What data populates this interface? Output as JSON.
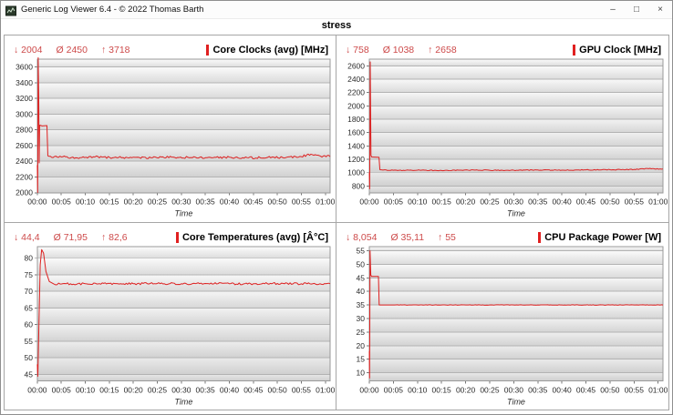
{
  "window": {
    "title": "Generic Log Viewer 6.4 - © 2022 Thomas Barth",
    "controls": {
      "minimize": "–",
      "maximize": "□",
      "close": "×"
    }
  },
  "header": {
    "title": "stress"
  },
  "colors": {
    "line": "#dd2020",
    "stats_text": "#cd4a4a",
    "title_marker": "#e02020",
    "grid_line": "#b3b3b3",
    "plot_border": "#999999",
    "band_top": "#fcfcfc",
    "band_bottom": "#dedede",
    "panel_border": "#a6a6a6"
  },
  "chart_data": [
    {
      "type": "line",
      "title": "Core Clocks (avg) [MHz]",
      "stats": {
        "min": "↓ 2004",
        "avg": "Ø 2450",
        "max": "↑ 3718"
      },
      "xlabel": "Time",
      "xlim": [
        0,
        61
      ],
      "ylim": [
        2000,
        3700
      ],
      "y_ticks": [
        2000,
        2200,
        2400,
        2600,
        2800,
        3000,
        3200,
        3400,
        3600
      ],
      "x_ticks": [
        0,
        5,
        10,
        15,
        20,
        25,
        30,
        35,
        40,
        45,
        50,
        55,
        60
      ],
      "x_tick_labels": [
        "00:00",
        "00:05",
        "00:10",
        "00:15",
        "00:20",
        "00:25",
        "00:30",
        "00:35",
        "00:40",
        "00:45",
        "00:50",
        "00:55",
        "01:00"
      ],
      "series": [
        {
          "name": "Core Clocks (avg)",
          "points": [
            [
              0,
              2350
            ],
            [
              0.08,
              2004
            ],
            [
              0.18,
              3718
            ],
            [
              0.3,
              3200
            ],
            [
              0.4,
              2380
            ],
            [
              0.5,
              2860
            ],
            [
              1.0,
              2850
            ],
            [
              2.0,
              2855
            ],
            [
              2.2,
              2470
            ],
            [
              3,
              2450
            ],
            [
              5,
              2455
            ],
            [
              8,
              2445
            ],
            [
              12,
              2455
            ],
            [
              16,
              2448
            ],
            [
              20,
              2452
            ],
            [
              24,
              2446
            ],
            [
              28,
              2452
            ],
            [
              32,
              2448
            ],
            [
              36,
              2450
            ],
            [
              40,
              2452
            ],
            [
              44,
              2444
            ],
            [
              48,
              2450
            ],
            [
              52,
              2452
            ],
            [
              55,
              2460
            ],
            [
              57,
              2490
            ],
            [
              59,
              2465
            ],
            [
              61,
              2460
            ]
          ],
          "noise": {
            "start": 2.2,
            "amp": 14
          }
        }
      ]
    },
    {
      "type": "line",
      "title": "GPU Clock [MHz]",
      "stats": {
        "min": "↓ 758",
        "avg": "Ø 1038",
        "max": "↑ 2658"
      },
      "xlabel": "Time",
      "xlim": [
        0,
        61
      ],
      "ylim": [
        700,
        2700
      ],
      "y_ticks": [
        800,
        1000,
        1200,
        1400,
        1600,
        1800,
        2000,
        2200,
        2400,
        2600
      ],
      "x_ticks": [
        0,
        5,
        10,
        15,
        20,
        25,
        30,
        35,
        40,
        45,
        50,
        55,
        60
      ],
      "x_tick_labels": [
        "00:00",
        "00:05",
        "00:10",
        "00:15",
        "00:20",
        "00:25",
        "00:30",
        "00:35",
        "00:40",
        "00:45",
        "00:50",
        "00:55",
        "01:00"
      ],
      "series": [
        {
          "name": "GPU Clock",
          "points": [
            [
              0,
              1000
            ],
            [
              0.08,
              758
            ],
            [
              0.18,
              2658
            ],
            [
              0.35,
              1260
            ],
            [
              0.5,
              1235
            ],
            [
              2.0,
              1230
            ],
            [
              2.2,
              1045
            ],
            [
              5,
              1035
            ],
            [
              10,
              1038
            ],
            [
              15,
              1032
            ],
            [
              20,
              1040
            ],
            [
              25,
              1035
            ],
            [
              30,
              1036
            ],
            [
              35,
              1040
            ],
            [
              40,
              1038
            ],
            [
              45,
              1042
            ],
            [
              50,
              1045
            ],
            [
              55,
              1048
            ],
            [
              58,
              1060
            ],
            [
              61,
              1055
            ]
          ],
          "noise": {
            "start": 2.2,
            "amp": 6
          }
        }
      ]
    },
    {
      "type": "line",
      "title": "Core Temperatures (avg) [Â°C]",
      "stats": {
        "min": "↓ 44,4",
        "avg": "Ø 71,95",
        "max": "↑ 82,6"
      },
      "xlabel": "Time",
      "xlim": [
        0,
        61
      ],
      "ylim": [
        43,
        83.5
      ],
      "y_ticks": [
        45,
        50,
        55,
        60,
        65,
        70,
        75,
        80
      ],
      "x_ticks": [
        0,
        5,
        10,
        15,
        20,
        25,
        30,
        35,
        40,
        45,
        50,
        55,
        60
      ],
      "x_tick_labels": [
        "00:00",
        "00:05",
        "00:10",
        "00:15",
        "00:20",
        "00:25",
        "00:30",
        "00:35",
        "00:40",
        "00:45",
        "00:50",
        "00:55",
        "01:00"
      ],
      "series": [
        {
          "name": "Core Temperatures (avg)",
          "points": [
            [
              0,
              48
            ],
            [
              0.12,
              44.4
            ],
            [
              0.6,
              78
            ],
            [
              0.9,
              82.6
            ],
            [
              1.3,
              81.5
            ],
            [
              1.8,
              76
            ],
            [
              2.5,
              73
            ],
            [
              3.5,
              72.2
            ],
            [
              6,
              72.3
            ],
            [
              10,
              72.3
            ],
            [
              15,
              72.4
            ],
            [
              20,
              72.3
            ],
            [
              25,
              72.4
            ],
            [
              30,
              72.3
            ],
            [
              35,
              72.4
            ],
            [
              40,
              72.3
            ],
            [
              45,
              72.3
            ],
            [
              50,
              72.4
            ],
            [
              55,
              72.3
            ],
            [
              61,
              72.3
            ]
          ],
          "noise": {
            "start": 3.5,
            "amp": 0.3
          }
        }
      ]
    },
    {
      "type": "line",
      "title": "CPU Package Power [W]",
      "stats": {
        "min": "↓ 8,054",
        "avg": "Ø 35,11",
        "max": "↑ 55"
      },
      "xlabel": "Time",
      "xlim": [
        0,
        61
      ],
      "ylim": [
        7,
        56.5
      ],
      "y_ticks": [
        10,
        15,
        20,
        25,
        30,
        35,
        40,
        45,
        50,
        55
      ],
      "x_ticks": [
        0,
        5,
        10,
        15,
        20,
        25,
        30,
        35,
        40,
        45,
        50,
        55,
        60
      ],
      "x_tick_labels": [
        "00:00",
        "00:05",
        "00:10",
        "00:15",
        "00:20",
        "00:25",
        "00:30",
        "00:35",
        "00:40",
        "00:45",
        "00:50",
        "00:55",
        "01:00"
      ],
      "series": [
        {
          "name": "CPU Package Power",
          "points": [
            [
              0,
              18
            ],
            [
              0.06,
              8.054
            ],
            [
              0.16,
              55
            ],
            [
              0.3,
              46
            ],
            [
              0.5,
              45.5
            ],
            [
              1.9,
              45.5
            ],
            [
              2.05,
              35
            ],
            [
              5,
              35
            ],
            [
              10,
              35
            ],
            [
              15,
              35
            ],
            [
              20,
              35
            ],
            [
              25,
              35
            ],
            [
              30,
              35
            ],
            [
              35,
              35
            ],
            [
              40,
              35
            ],
            [
              45,
              35
            ],
            [
              50,
              35
            ],
            [
              55,
              35
            ],
            [
              61,
              35
            ]
          ],
          "noise": {
            "start": 2.1,
            "amp": 0.08
          }
        }
      ]
    }
  ]
}
